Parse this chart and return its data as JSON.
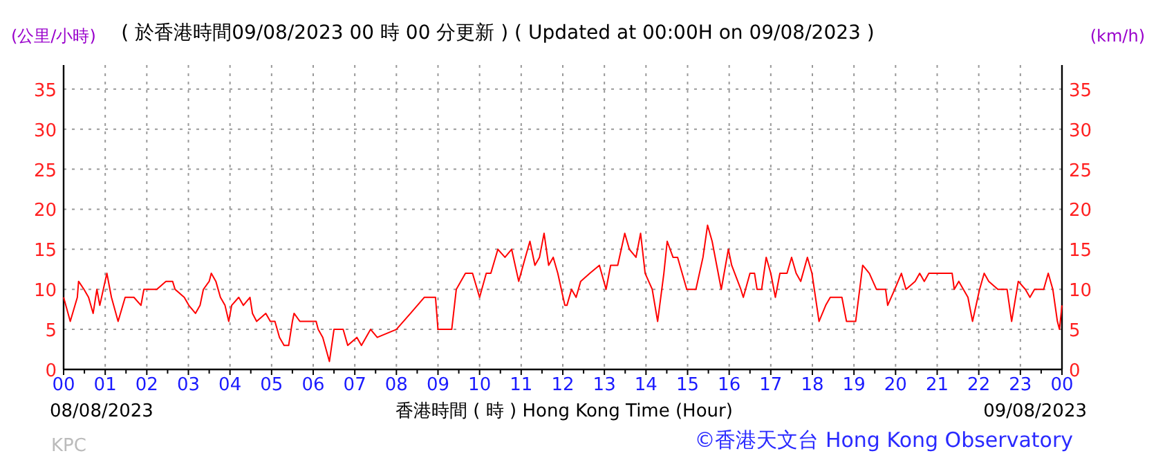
{
  "chart_data": {
    "type": "line",
    "title": "( 於香港時間09/08/2023 00 時 00 分更新 ) ( Updated at 00:00H on 09/08/2023 )",
    "ylabel": "(公里/小時)",
    "y2label": "(km/h)",
    "xlabel": "香港時間 ( 時 ) Hong Kong Time (Hour)",
    "annotations": [
      "08/08/2023",
      "09/08/2023",
      "KPC",
      "©香港天文台 Hong Kong Observatory"
    ],
    "xlim": [
      0,
      24
    ],
    "xticks": [
      {
        "value": 0,
        "label": "00"
      },
      {
        "value": 1,
        "label": "01"
      },
      {
        "value": 2,
        "label": "02"
      },
      {
        "value": 3,
        "label": "03"
      },
      {
        "value": 4,
        "label": "04"
      },
      {
        "value": 5,
        "label": "05"
      },
      {
        "value": 6,
        "label": "06"
      },
      {
        "value": 7,
        "label": "07"
      },
      {
        "value": 8,
        "label": "08"
      },
      {
        "value": 9,
        "label": "09"
      },
      {
        "value": 10,
        "label": "10"
      },
      {
        "value": 11,
        "label": "11"
      },
      {
        "value": 12,
        "label": "12"
      },
      {
        "value": 13,
        "label": "13"
      },
      {
        "value": 14,
        "label": "14"
      },
      {
        "value": 15,
        "label": "15"
      },
      {
        "value": 16,
        "label": "16"
      },
      {
        "value": 17,
        "label": "17"
      },
      {
        "value": 18,
        "label": "18"
      },
      {
        "value": 19,
        "label": "19"
      },
      {
        "value": 20,
        "label": "20"
      },
      {
        "value": 21,
        "label": "21"
      },
      {
        "value": 22,
        "label": "22"
      },
      {
        "value": 23,
        "label": "23"
      },
      {
        "value": 24,
        "label": "00"
      }
    ],
    "ylim": [
      0,
      38
    ],
    "yticks": [
      0,
      5,
      10,
      15,
      20,
      25,
      30,
      35
    ],
    "y2lim": [
      0,
      38
    ],
    "y2ticks": [
      0,
      5,
      10,
      15,
      20,
      25,
      30,
      35
    ],
    "grid": true,
    "color": "#ff0000",
    "x": [
      0,
      0.16,
      0.33,
      0.36,
      0.49,
      0.6,
      0.71,
      0.8,
      0.87,
      1.04,
      1.15,
      1.31,
      1.48,
      1.69,
      1.86,
      1.93,
      2.24,
      2.46,
      2.62,
      2.68,
      2.9,
      3.01,
      3.17,
      3.28,
      3.36,
      3.5,
      3.55,
      3.66,
      3.77,
      3.88,
      3.97,
      4.04,
      4.21,
      4.32,
      4.48,
      4.54,
      4.64,
      4.86,
      4.97,
      5.08,
      5.19,
      5.3,
      5.41,
      5.5,
      5.54,
      5.68,
      6.07,
      6.12,
      6.23,
      6.39,
      6.5,
      6.72,
      6.83,
      7.05,
      7.16,
      7.38,
      7.54,
      8.0,
      8.34,
      8.67,
      8.94,
      9.0,
      9.11,
      9.33,
      9.44,
      9.66,
      9.83,
      10.0,
      10.16,
      10.27,
      10.44,
      10.61,
      10.77,
      10.94,
      11.1,
      11.21,
      11.33,
      11.44,
      11.55,
      11.66,
      11.77,
      11.88,
      12.05,
      12.1,
      12.21,
      12.32,
      12.43,
      12.65,
      12.88,
      13.04,
      13.15,
      13.32,
      13.49,
      13.6,
      13.76,
      13.87,
      13.98,
      14.15,
      14.28,
      14.43,
      14.51,
      14.65,
      14.76,
      14.98,
      15.2,
      15.37,
      15.48,
      15.59,
      15.7,
      15.81,
      15.98,
      16.06,
      16.28,
      16.34,
      16.5,
      16.61,
      16.67,
      16.78,
      16.89,
      17,
      17.11,
      17.22,
      17.39,
      17.5,
      17.61,
      17.72,
      17.88,
      17.99,
      18.16,
      18.32,
      18.43,
      18.6,
      18.71,
      18.82,
      19.04,
      19.21,
      19.37,
      19.54,
      19.76,
      19.81,
      19.98,
      20.14,
      20.25,
      20.47,
      20.58,
      20.69,
      20.8,
      20.91,
      21.36,
      21.41,
      21.52,
      21.63,
      21.74,
      21.85,
      22.02,
      22.13,
      22.24,
      22.46,
      22.68,
      22.79,
      22.95,
      23.12,
      23.23,
      23.34,
      23.56,
      23.67,
      23.78,
      23.89,
      23.94,
      24
    ],
    "values": [
      9,
      6,
      9,
      11,
      10,
      9,
      7,
      10,
      8,
      12,
      9,
      6,
      9,
      9,
      8,
      10,
      10,
      11,
      11,
      10,
      9,
      8,
      7,
      8,
      10,
      11,
      12,
      11,
      9,
      8,
      6,
      8,
      9,
      8,
      9,
      7,
      6,
      7,
      6,
      6,
      4,
      3,
      3,
      6,
      7,
      6,
      6,
      5,
      4,
      1,
      5,
      5,
      3,
      4,
      3,
      5,
      4,
      5,
      7,
      9,
      9,
      5,
      5,
      5,
      10,
      12,
      12,
      9,
      12,
      12,
      15,
      14,
      15,
      11,
      14,
      16,
      13,
      14,
      17,
      13,
      14,
      12,
      8,
      8,
      10,
      9,
      11,
      12,
      13,
      10,
      13,
      13,
      17,
      15,
      14,
      17,
      12,
      10,
      6,
      12,
      16,
      14,
      14,
      10,
      10,
      14,
      18,
      16,
      13,
      10,
      15,
      13,
      10,
      9,
      12,
      12,
      10,
      10,
      14,
      12,
      9,
      12,
      12,
      14,
      12,
      11,
      14,
      12,
      6,
      8,
      9,
      9,
      9,
      6,
      6,
      13,
      12,
      10,
      10,
      8,
      10,
      12,
      10,
      11,
      12,
      11,
      12,
      12,
      12,
      10,
      11,
      10,
      9,
      6,
      10,
      12,
      11,
      10,
      10,
      6,
      11,
      10,
      9,
      10,
      10,
      12,
      10,
      6,
      5,
      8
    ]
  }
}
